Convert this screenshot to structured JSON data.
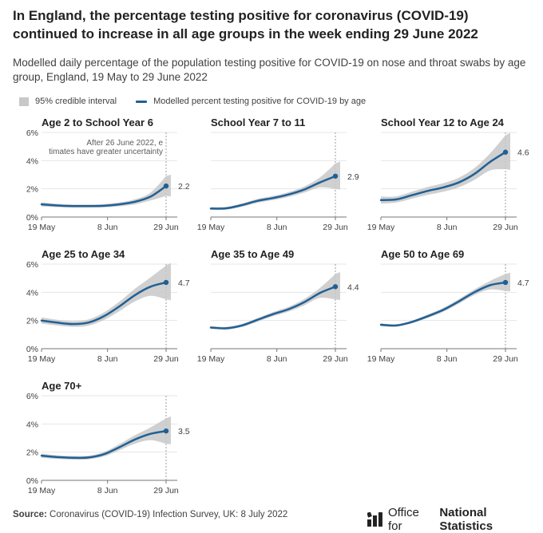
{
  "title": "In England, the percentage testing positive for coronavirus (COVID-19) continued to increase in all age groups in the week ending 29 June 2022",
  "subtitle": "Modelled daily percentage of the population testing positive for COVID-19 on nose and throat swabs by age group, England, 19 May to 29 June 2022",
  "legend": {
    "interval_label": "95% credible interval",
    "line_label": "Modelled percent testing positive for COVID-19 by age"
  },
  "colors": {
    "line": "#206095",
    "band": "#c8c8c8",
    "axis": "#767676",
    "text": "#414042"
  },
  "annotation": "After 26 June 2022, estimates have greater uncertainty",
  "chart_data": [
    {
      "type": "line",
      "title": "Age 2 to School Year 6",
      "x_ticks": [
        "19 May",
        "8 Jun",
        "29 Jun"
      ],
      "y_ticks": [
        "6%",
        "4%",
        "2%",
        "0%"
      ],
      "ylim": [
        0,
        6
      ],
      "end_label": "2.2",
      "series": [
        {
          "name": "Modelled percent testing positive for COVID-19 by age",
          "values": [
            0.9,
            0.82,
            0.78,
            0.78,
            0.8,
            0.9,
            1.08,
            1.45,
            2.2
          ]
        }
      ],
      "band_width": [
        0.15,
        0.12,
        0.11,
        0.11,
        0.12,
        0.14,
        0.18,
        0.28,
        0.7
      ]
    },
    {
      "type": "line",
      "title": "School Year 7 to 11",
      "x_ticks": [
        "19 May",
        "8 Jun",
        "29 Jun"
      ],
      "y_ticks": [
        "6%",
        "4%",
        "2%",
        "0%"
      ],
      "ylim": [
        0,
        6
      ],
      "end_label": "2.9",
      "series": [
        {
          "name": "Modelled percent testing positive for COVID-19 by age",
          "values": [
            0.6,
            0.62,
            0.85,
            1.15,
            1.35,
            1.6,
            1.95,
            2.45,
            2.9
          ]
        }
      ],
      "band_width": [
        0.1,
        0.1,
        0.12,
        0.14,
        0.15,
        0.17,
        0.22,
        0.35,
        0.9
      ]
    },
    {
      "type": "line",
      "title": "School Year 12 to Age 24",
      "x_ticks": [
        "19 May",
        "8 Jun",
        "29 Jun"
      ],
      "y_ticks": [
        "6%",
        "4%",
        "2%",
        "0%"
      ],
      "ylim": [
        0,
        6
      ],
      "end_label": "4.6",
      "series": [
        {
          "name": "Modelled percent testing positive for COVID-19 by age",
          "values": [
            1.2,
            1.25,
            1.55,
            1.85,
            2.1,
            2.45,
            3.05,
            3.9,
            4.6
          ]
        }
      ],
      "band_width": [
        0.25,
        0.22,
        0.25,
        0.28,
        0.3,
        0.34,
        0.42,
        0.6,
        1.2
      ]
    },
    {
      "type": "line",
      "title": "Age 25 to Age 34",
      "x_ticks": [
        "19 May",
        "8 Jun",
        "29 Jun"
      ],
      "y_ticks": [
        "6%",
        "4%",
        "2%",
        "0%"
      ],
      "ylim": [
        0,
        6
      ],
      "end_label": "4.7",
      "series": [
        {
          "name": "Modelled percent testing positive for COVID-19 by age",
          "values": [
            2.0,
            1.85,
            1.75,
            1.85,
            2.3,
            3.0,
            3.8,
            4.4,
            4.7
          ]
        }
      ],
      "band_width": [
        0.22,
        0.2,
        0.2,
        0.22,
        0.27,
        0.34,
        0.45,
        0.65,
        1.2
      ]
    },
    {
      "type": "line",
      "title": "Age 35 to Age 49",
      "x_ticks": [
        "19 May",
        "8 Jun",
        "29 Jun"
      ],
      "y_ticks": [
        "6%",
        "4%",
        "2%",
        "0%"
      ],
      "ylim": [
        0,
        6
      ],
      "end_label": "4.4",
      "series": [
        {
          "name": "Modelled percent testing positive for COVID-19 by age",
          "values": [
            1.5,
            1.45,
            1.65,
            2.05,
            2.45,
            2.8,
            3.3,
            3.95,
            4.4
          ]
        }
      ],
      "band_width": [
        0.1,
        0.1,
        0.11,
        0.13,
        0.15,
        0.17,
        0.22,
        0.35,
        0.9
      ]
    },
    {
      "type": "line",
      "title": "Age 50 to Age 69",
      "x_ticks": [
        "19 May",
        "8 Jun",
        "29 Jun"
      ],
      "y_ticks": [
        "6%",
        "4%",
        "2%",
        "0%"
      ],
      "ylim": [
        0,
        6
      ],
      "end_label": "4.7",
      "series": [
        {
          "name": "Modelled percent testing positive for COVID-19 by age",
          "values": [
            1.7,
            1.65,
            1.9,
            2.3,
            2.75,
            3.35,
            4.0,
            4.5,
            4.7
          ]
        }
      ],
      "band_width": [
        0.1,
        0.09,
        0.1,
        0.12,
        0.14,
        0.16,
        0.2,
        0.3,
        0.6
      ]
    },
    {
      "type": "line",
      "title": "Age 70+",
      "x_ticks": [
        "19 May",
        "8 Jun",
        "29 Jun"
      ],
      "y_ticks": [
        "6%",
        "4%",
        "2%",
        "0%"
      ],
      "ylim": [
        0,
        6
      ],
      "end_label": "3.5",
      "series": [
        {
          "name": "Modelled percent testing positive for COVID-19 by age",
          "values": [
            1.75,
            1.65,
            1.6,
            1.62,
            1.85,
            2.35,
            2.9,
            3.3,
            3.5
          ]
        }
      ],
      "band_width": [
        0.15,
        0.13,
        0.13,
        0.13,
        0.16,
        0.22,
        0.3,
        0.45,
        0.9
      ]
    }
  ],
  "source": {
    "label": "Source:",
    "text": "Coronavirus (COVID-19) Infection Survey, UK: 8 July 2022"
  },
  "logo": {
    "text_regular": "Office for",
    "text_bold": "National Statistics"
  }
}
